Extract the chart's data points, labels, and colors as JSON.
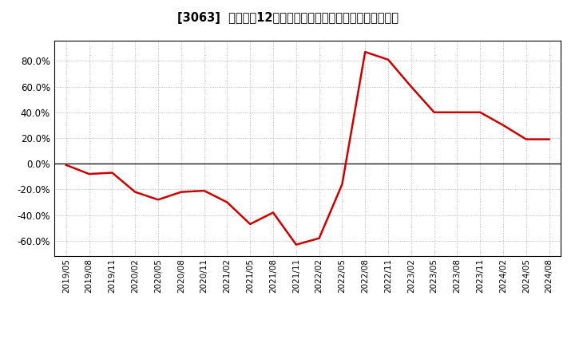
{
  "title": "[3063]  売上高の12か月移動合計の対前年同期増減率の推移",
  "line_color": "#cc0000",
  "background_color": "#ffffff",
  "plot_bg_color": "#ffffff",
  "grid_color": "#aaaaaa",
  "ylim": [
    -0.72,
    0.96
  ],
  "yticks": [
    -0.6,
    -0.4,
    -0.2,
    0.0,
    0.2,
    0.4,
    0.6,
    0.8
  ],
  "dates": [
    "2019/05",
    "2019/08",
    "2019/11",
    "2020/02",
    "2020/05",
    "2020/08",
    "2020/11",
    "2021/02",
    "2021/05",
    "2021/08",
    "2021/11",
    "2022/02",
    "2022/05",
    "2022/08",
    "2022/11",
    "2023/02",
    "2023/05",
    "2023/08",
    "2023/11",
    "2024/02",
    "2024/05",
    "2024/08"
  ],
  "values": [
    -0.01,
    -0.08,
    -0.07,
    -0.22,
    -0.28,
    -0.22,
    -0.21,
    -0.3,
    -0.47,
    -0.38,
    -0.63,
    -0.58,
    -0.16,
    0.87,
    0.81,
    0.6,
    0.4,
    0.4,
    0.4,
    0.3,
    0.19,
    0.19
  ]
}
